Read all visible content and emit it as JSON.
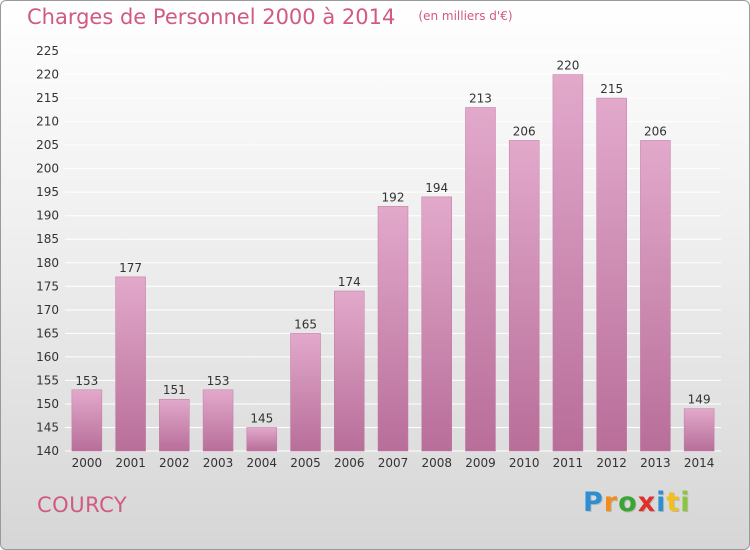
{
  "chart_data": {
    "type": "bar",
    "title": "Charges de Personnel 2000 à 2014",
    "subtitle": "(en milliers d'€)",
    "categories": [
      "2000",
      "2001",
      "2002",
      "2003",
      "2004",
      "2005",
      "2006",
      "2007",
      "2008",
      "2009",
      "2010",
      "2011",
      "2012",
      "2013",
      "2014"
    ],
    "values": [
      153,
      177,
      151,
      153,
      145,
      165,
      174,
      192,
      194,
      213,
      206,
      220,
      215,
      206,
      149
    ],
    "ylim": [
      140,
      225
    ],
    "yticks": [
      140,
      145,
      150,
      155,
      160,
      165,
      170,
      175,
      180,
      185,
      190,
      195,
      200,
      205,
      210,
      215,
      220,
      225
    ],
    "grid": true,
    "xlabel": "",
    "ylabel": "",
    "bar_color": "#d889b4",
    "bar_color_top": "#e2a9cb",
    "bar_color_bottom": "#b86e99"
  },
  "commune": "COURCY",
  "brand": {
    "letters": [
      "P",
      "r",
      "o",
      "x",
      "i",
      "t",
      "i"
    ],
    "colors": [
      "#2b8fd1",
      "#f28c1c",
      "#3aa535",
      "#e0302a",
      "#2b8fd1",
      "#f2c01c",
      "#8cc63f"
    ]
  },
  "colors": {
    "title": "#d05a80",
    "grid": "#ffffff",
    "axis_text": "#333333"
  }
}
